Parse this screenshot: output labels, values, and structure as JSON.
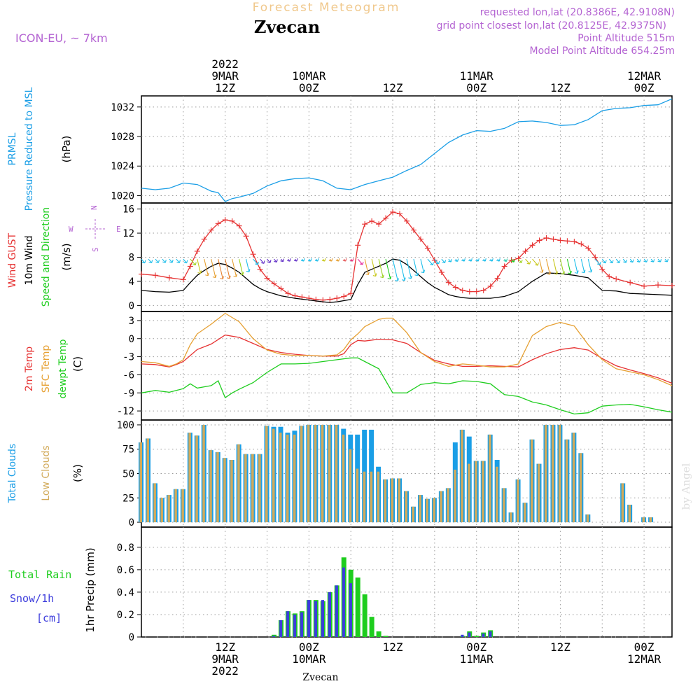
{
  "header": {
    "product_title": "Forecast Meteogram",
    "location": "Zvecan",
    "model": "ICON-EU, ~ 7km",
    "requested_point": "requested lon,lat (20.8386E, 42.9108N)",
    "grid_point": "grid point closest lon,lat (20.8125E, 42.9375N)",
    "point_altitude": "Point Altitude 515m",
    "model_point_altitude": "Model Point Altitude 654.25m"
  },
  "footer": {
    "location": "Zvecan",
    "credit": "by Angel"
  },
  "colors": {
    "pressure": "#1a9ee6",
    "gust": "#e63232",
    "wind": "#000000",
    "t2m": "#e63232",
    "tsfc": "#e6a032",
    "dewpt": "#1ecd1e",
    "total_clouds": "#1a9ee6",
    "low_clouds": "#d2aa5a",
    "rain": "#1ecd1e",
    "snow": "#3c3cdc",
    "header_purple": "#b464d2",
    "header_orange": "#f0c88c"
  },
  "time_axis": {
    "top_labels": [
      {
        "t": 12,
        "lines": [
          "2022",
          "9MAR",
          "12Z"
        ]
      },
      {
        "t": 24,
        "lines": [
          "10MAR",
          "00Z"
        ]
      },
      {
        "t": 36,
        "lines": [
          "12Z"
        ]
      },
      {
        "t": 48,
        "lines": [
          "11MAR",
          "00Z"
        ]
      },
      {
        "t": 60,
        "lines": [
          "12Z"
        ]
      },
      {
        "t": 72,
        "lines": [
          "12MAR",
          "00Z"
        ]
      }
    ],
    "bottom_labels": [
      {
        "t": 12,
        "lines": [
          "12Z",
          "9MAR",
          "2022"
        ]
      },
      {
        "t": 24,
        "lines": [
          "00Z",
          "10MAR"
        ]
      },
      {
        "t": 36,
        "lines": [
          "12Z"
        ]
      },
      {
        "t": 48,
        "lines": [
          "00Z",
          "11MAR"
        ]
      },
      {
        "t": 60,
        "lines": [
          "12Z"
        ]
      },
      {
        "t": 72,
        "lines": [
          "00Z",
          "12MAR"
        ]
      }
    ]
  },
  "chart_data": [
    {
      "type": "line",
      "name": "pressure",
      "ylabels": [
        "PRMSL",
        "Pressure Reduced to MSL",
        "(hPa)"
      ],
      "ylim": [
        1019,
        1033.5
      ],
      "yticks": [
        1020,
        1024,
        1028,
        1032
      ],
      "series": [
        {
          "name": "PRMSL",
          "x": [
            0,
            2,
            4,
            6,
            8,
            10,
            11,
            12,
            13,
            14,
            16,
            18,
            20,
            22,
            24,
            26,
            28,
            30,
            32,
            34,
            36,
            38,
            40,
            42,
            44,
            46,
            48,
            50,
            52,
            54,
            56,
            58,
            60,
            62,
            64,
            66,
            68,
            70,
            72,
            74,
            76
          ],
          "values": [
            1021.0,
            1020.8,
            1021.0,
            1021.7,
            1021.5,
            1020.6,
            1020.4,
            1019.2,
            1019.6,
            1019.8,
            1020.3,
            1021.3,
            1022.0,
            1022.3,
            1022.4,
            1022.0,
            1021.0,
            1020.8,
            1021.5,
            1022.0,
            1022.5,
            1023.4,
            1024.2,
            1025.7,
            1027.2,
            1028.2,
            1028.8,
            1028.7,
            1029.1,
            1030.0,
            1030.1,
            1029.9,
            1029.5,
            1029.6,
            1030.3,
            1031.5,
            1031.8,
            1031.9,
            1032.2,
            1032.3,
            1033.1
          ]
        }
      ]
    },
    {
      "type": "line",
      "name": "wind",
      "ylabels": [
        "Wind GUST",
        "10m Wind",
        "Speed and Direction",
        "(m/s)"
      ],
      "compass": {
        "n": "N",
        "s": "S",
        "e": "E",
        "w": "W"
      },
      "ylim": [
        -1,
        17
      ],
      "yticks": [
        0,
        4,
        8,
        12,
        16
      ],
      "series": [
        {
          "name": "Wind GUST",
          "x": [
            0,
            2,
            4,
            6,
            7,
            8,
            9,
            10,
            11,
            12,
            13,
            14,
            15,
            16,
            17,
            18,
            19,
            20,
            21,
            22,
            23,
            24,
            25,
            26,
            27,
            28,
            29,
            30,
            31,
            32,
            33,
            34,
            35,
            36,
            37,
            38,
            39,
            40,
            41,
            42,
            43,
            44,
            45,
            46,
            47,
            48,
            49,
            50,
            51,
            52,
            53,
            54,
            55,
            56,
            57,
            58,
            59,
            60,
            61,
            62,
            63,
            64,
            65,
            66,
            67,
            68,
            70,
            72,
            74,
            76
          ],
          "values": [
            5.2,
            5.0,
            4.6,
            4.3,
            6.5,
            9.0,
            11.0,
            12.5,
            13.6,
            14.2,
            14.0,
            13.2,
            11.5,
            8.5,
            6.0,
            4.5,
            3.6,
            2.8,
            2.0,
            1.6,
            1.4,
            1.2,
            1.0,
            0.9,
            1.0,
            1.2,
            1.5,
            2.0,
            10.0,
            13.5,
            14.0,
            13.5,
            14.5,
            15.5,
            15.2,
            14.0,
            12.5,
            11.0,
            9.5,
            7.5,
            5.5,
            3.8,
            3.0,
            2.5,
            2.3,
            2.3,
            2.5,
            3.2,
            4.5,
            6.5,
            7.5,
            7.8,
            9.0,
            10.0,
            10.8,
            11.2,
            11.0,
            10.8,
            10.7,
            10.6,
            10.2,
            9.5,
            8.0,
            6.0,
            4.8,
            4.4,
            3.8,
            3.2,
            3.4,
            3.3
          ]
        },
        {
          "name": "10m Wind",
          "x": [
            0,
            2,
            4,
            6,
            7,
            8,
            9,
            10,
            11,
            12,
            13,
            14,
            15,
            16,
            17,
            18,
            20,
            22,
            24,
            26,
            27,
            28,
            29,
            30,
            31,
            32,
            33,
            34,
            35,
            36,
            37,
            38,
            39,
            40,
            41,
            42,
            43,
            44,
            45,
            46,
            47,
            48,
            50,
            52,
            54,
            56,
            58,
            60,
            62,
            64,
            66,
            68,
            70,
            72,
            74,
            76
          ],
          "values": [
            2.5,
            2.3,
            2.2,
            2.5,
            3.8,
            5.0,
            5.8,
            6.5,
            7.0,
            6.8,
            6.2,
            5.5,
            4.5,
            3.5,
            2.8,
            2.3,
            1.6,
            1.2,
            0.9,
            0.6,
            0.5,
            0.6,
            0.8,
            1.0,
            3.5,
            5.5,
            6.0,
            6.5,
            7.0,
            7.7,
            7.5,
            6.8,
            5.8,
            4.8,
            3.8,
            3.0,
            2.4,
            1.8,
            1.5,
            1.3,
            1.2,
            1.2,
            1.2,
            1.5,
            2.3,
            4.0,
            5.4,
            5.3,
            5.0,
            4.6,
            2.5,
            2.4,
            2.0,
            1.9,
            1.8,
            1.7
          ]
        }
      ]
    },
    {
      "type": "line",
      "name": "temperature",
      "ylabels": [
        "2m Temp",
        "SFC Temp",
        "dewpt Temp",
        "(C)"
      ],
      "ylim": [
        -13.5,
        4.5
      ],
      "yticks": [
        3,
        0,
        -3,
        -6,
        -9,
        -12
      ],
      "series": [
        {
          "name": "2m Temp",
          "x": [
            0,
            2,
            4,
            5,
            6,
            8,
            10,
            12,
            14,
            16,
            18,
            20,
            22,
            24,
            26,
            28,
            29,
            30,
            31,
            32,
            34,
            36,
            38,
            40,
            42,
            44,
            46,
            48,
            50,
            52,
            54,
            56,
            58,
            60,
            62,
            64,
            66,
            68,
            70,
            72,
            74,
            76
          ],
          "values": [
            -4.2,
            -4.3,
            -4.7,
            -4.3,
            -3.8,
            -1.8,
            -0.9,
            0.6,
            0.2,
            -0.8,
            -1.8,
            -2.3,
            -2.6,
            -2.8,
            -2.9,
            -2.9,
            -2.5,
            -1.0,
            -0.3,
            -0.4,
            -0.1,
            -0.2,
            -0.8,
            -2.3,
            -3.6,
            -4.2,
            -4.6,
            -4.6,
            -4.5,
            -4.6,
            -4.7,
            -3.5,
            -2.5,
            -1.8,
            -1.5,
            -1.9,
            -3.3,
            -4.5,
            -5.2,
            -5.8,
            -6.5,
            -7.4
          ]
        },
        {
          "name": "SFC Temp",
          "x": [
            0,
            2,
            4,
            5,
            6,
            7,
            8,
            10,
            12,
            14,
            16,
            18,
            20,
            22,
            24,
            26,
            28,
            29,
            30,
            31,
            32,
            34,
            35,
            36,
            38,
            40,
            42,
            44,
            46,
            48,
            50,
            52,
            54,
            56,
            58,
            60,
            62,
            64,
            66,
            68,
            70,
            72,
            74,
            76
          ],
          "values": [
            -3.8,
            -4.0,
            -4.6,
            -4.2,
            -3.5,
            -1.0,
            0.8,
            2.4,
            4.2,
            2.8,
            0.0,
            -1.9,
            -2.6,
            -2.8,
            -2.8,
            -2.9,
            -2.7,
            -1.8,
            -0.2,
            0.8,
            2.0,
            3.2,
            3.4,
            3.4,
            1.0,
            -2.3,
            -3.8,
            -4.6,
            -4.2,
            -4.4,
            -4.7,
            -4.7,
            -4.2,
            0.5,
            2.0,
            2.7,
            2.1,
            -1.0,
            -3.5,
            -5.0,
            -5.5,
            -6.0,
            -6.8,
            -7.8
          ]
        },
        {
          "name": "dewpt Temp",
          "x": [
            0,
            2,
            4,
            6,
            7,
            8,
            9,
            10,
            11,
            12,
            13,
            14,
            16,
            18,
            20,
            22,
            24,
            26,
            28,
            30,
            31,
            32,
            34,
            35,
            36,
            38,
            40,
            42,
            44,
            46,
            48,
            50,
            52,
            54,
            56,
            58,
            60,
            62,
            64,
            66,
            68,
            70,
            72,
            74,
            76
          ],
          "values": [
            -9.0,
            -8.6,
            -8.9,
            -8.3,
            -7.5,
            -8.2,
            -8.0,
            -7.8,
            -7.0,
            -9.8,
            -9.0,
            -8.4,
            -7.3,
            -5.6,
            -4.2,
            -4.2,
            -4.1,
            -3.8,
            -3.5,
            -3.2,
            -3.2,
            -3.8,
            -5.0,
            -7.0,
            -9.0,
            -9.0,
            -7.6,
            -7.3,
            -7.5,
            -7.0,
            -7.1,
            -7.5,
            -9.3,
            -9.6,
            -10.5,
            -11.0,
            -11.8,
            -12.5,
            -12.3,
            -11.2,
            -11.0,
            -10.9,
            -11.3,
            -11.8,
            -12.2
          ]
        }
      ]
    },
    {
      "type": "bar",
      "name": "clouds",
      "ylabels": [
        "Total Clouds",
        "Low Clouds",
        "(%)"
      ],
      "ylim": [
        -5,
        105
      ],
      "yticks": [
        0,
        25,
        50,
        75,
        100
      ],
      "x": [
        0,
        1,
        2,
        3,
        4,
        5,
        6,
        7,
        8,
        9,
        10,
        11,
        12,
        13,
        14,
        15,
        16,
        17,
        18,
        19,
        20,
        21,
        22,
        23,
        24,
        25,
        26,
        27,
        28,
        29,
        30,
        31,
        32,
        33,
        34,
        35,
        36,
        37,
        38,
        39,
        40,
        41,
        42,
        43,
        44,
        45,
        46,
        47,
        48,
        49,
        50,
        51,
        52,
        53,
        54,
        55,
        56,
        57,
        58,
        59,
        60,
        61,
        62,
        63,
        64,
        65,
        66,
        67,
        68,
        69,
        70,
        71,
        72,
        73,
        74,
        75,
        76
      ],
      "series": [
        {
          "name": "Total Clouds",
          "values": [
            82,
            86,
            40,
            25,
            28,
            34,
            34,
            92,
            89,
            100,
            74,
            72,
            66,
            64,
            80,
            70,
            70,
            70,
            99,
            98,
            98,
            92,
            94,
            99,
            100,
            100,
            100,
            100,
            100,
            96,
            90,
            90,
            95,
            95,
            57,
            44,
            45,
            45,
            32,
            16,
            28,
            24,
            25,
            32,
            35,
            82,
            95,
            88,
            63,
            63,
            90,
            64,
            35,
            10,
            44,
            20,
            85,
            60,
            100,
            100,
            100,
            85,
            92,
            71,
            8,
            0,
            0,
            0,
            0,
            40,
            18,
            0,
            5,
            5,
            0,
            0,
            0
          ]
        },
        {
          "name": "Low Clouds",
          "values": [
            82,
            86,
            40,
            25,
            28,
            34,
            34,
            92,
            89,
            100,
            74,
            72,
            66,
            64,
            80,
            70,
            70,
            70,
            99,
            96,
            92,
            90,
            90,
            99,
            100,
            100,
            100,
            100,
            100,
            90,
            75,
            55,
            52,
            52,
            52,
            44,
            45,
            45,
            32,
            16,
            28,
            24,
            25,
            32,
            35,
            54,
            95,
            60,
            63,
            63,
            90,
            57,
            35,
            10,
            44,
            20,
            85,
            60,
            100,
            100,
            100,
            85,
            92,
            71,
            8,
            0,
            0,
            0,
            0,
            40,
            18,
            0,
            5,
            5,
            0,
            0,
            0
          ]
        }
      ]
    },
    {
      "type": "bar",
      "name": "precip",
      "ylabels": [
        "1hr Precip (mm)"
      ],
      "side_labels": {
        "rain": "Total Rain",
        "snow": "Snow/1h",
        "snow_unit": "[cm]"
      },
      "ylim": [
        0,
        0.98
      ],
      "yticks": [
        0,
        0.2,
        0.4,
        0.6,
        0.8
      ],
      "x": [
        19,
        20,
        21,
        22,
        23,
        24,
        25,
        26,
        27,
        28,
        29,
        30,
        31,
        32,
        33,
        34,
        35,
        46,
        47,
        48,
        49,
        50,
        51
      ],
      "series": [
        {
          "name": "Total Rain",
          "values": [
            0.02,
            0.15,
            0.23,
            0.21,
            0.23,
            0.33,
            0.33,
            0.32,
            0.4,
            0.46,
            0.71,
            0.6,
            0.53,
            0.38,
            0.18,
            0.05,
            0.01,
            0.01,
            0.05,
            0.01,
            0.04,
            0.06,
            0.0
          ]
        },
        {
          "name": "Snow/1h",
          "values": [
            0.01,
            0.15,
            0.23,
            0.2,
            0.22,
            0.33,
            0.32,
            0.33,
            0.4,
            0.46,
            0.62,
            0.48,
            0.0,
            0.0,
            0.0,
            0.0,
            0.0,
            0.02,
            0.04,
            0.0,
            0.03,
            0.05,
            0.0
          ]
        }
      ]
    }
  ]
}
